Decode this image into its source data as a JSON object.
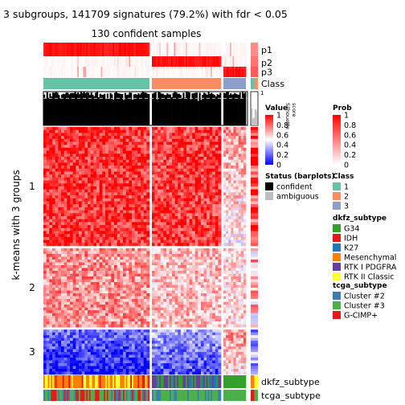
{
  "chart_data": {
    "type": "heatmap",
    "title": "3 subgroups, 141709 signatures (79.2%) with fdr < 0.05",
    "subtitle": "130 confident samples",
    "ylabel": "k-means with 3 groups",
    "row_groups": [
      "1",
      "2",
      "3"
    ],
    "row_group_fractions": [
      0.49,
      0.325,
      0.185
    ],
    "column_groups": [
      {
        "class": "1",
        "n_samples": 72
      },
      {
        "class": "2",
        "n_samples": 47
      },
      {
        "class": "3",
        "n_samples": 17
      }
    ],
    "top_annotations": [
      "p1",
      "p2",
      "p3",
      "Class"
    ],
    "silhouette_label": "Silhouette\nscore",
    "silhouette_ticks": [
      "1",
      "0"
    ],
    "silhouette_cutoff": 0.8,
    "bottom_annotations": [
      "dkfz_subtype",
      "tcga_subtype"
    ],
    "legends": {
      "value": {
        "title": "Value",
        "ticks": [
          "1",
          "0.8",
          "0.6",
          "0.4",
          "0.2",
          "0"
        ],
        "colors": [
          "#ff0000",
          "#ffffff",
          "#0000ff"
        ]
      },
      "prob": {
        "title": "Prob",
        "ticks": [
          "1",
          "0.8",
          "0.6",
          "0.4",
          "0.2",
          "0"
        ],
        "colors": [
          "#ff0000",
          "#ffffff"
        ]
      },
      "status": {
        "title": "Status (barplots)",
        "items": [
          {
            "label": "confident",
            "color": "#000000"
          },
          {
            "label": "ambiguous",
            "color": "#bebebe"
          }
        ]
      },
      "class": {
        "title": "Class",
        "items": [
          {
            "label": "1",
            "color": "#66c2a5"
          },
          {
            "label": "2",
            "color": "#fc8d62"
          },
          {
            "label": "3",
            "color": "#8da0cb"
          }
        ]
      },
      "dkfz": {
        "title": "dkfz_subtype",
        "items": [
          {
            "label": "G34",
            "color": "#33a02c"
          },
          {
            "label": "IDH",
            "color": "#e31a1c"
          },
          {
            "label": "K27",
            "color": "#1f78b4"
          },
          {
            "label": "Mesenchymal",
            "color": "#ff7f00"
          },
          {
            "label": "RTK I PDGFRA",
            "color": "#6a3d9a"
          },
          {
            "label": "RTK II Classic",
            "color": "#ffff33"
          }
        ]
      },
      "tcga": {
        "title": "tcga_subtype",
        "items": [
          {
            "label": "Cluster #2",
            "color": "#377eb8"
          },
          {
            "label": "Cluster #3",
            "color": "#4daf4a"
          },
          {
            "label": "G-CIMP+",
            "color": "#e41a1c"
          }
        ]
      }
    }
  }
}
